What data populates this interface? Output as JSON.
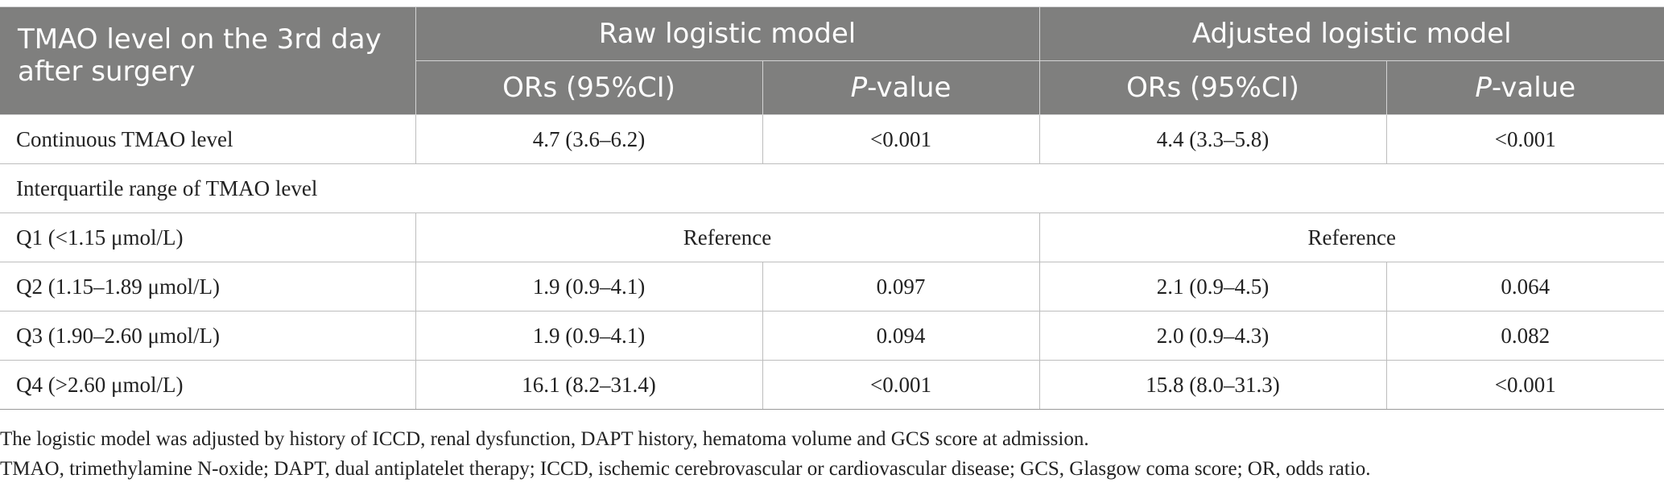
{
  "table": {
    "stub_header": "TMAO level on the 3rd day after surgery",
    "groups": [
      "Raw logistic model",
      "Adjusted logistic model"
    ],
    "or_header": "ORs (95%CI)",
    "p_header_italic": "P",
    "p_header_rest": "-value",
    "rows": [
      {
        "label": "Continuous TMAO level",
        "raw_or": "4.7 (3.6–6.2)",
        "raw_p": "<0.001",
        "adj_or": "4.4 (3.3–5.8)",
        "adj_p": "<0.001"
      },
      {
        "label": "Interquartile range of TMAO level"
      },
      {
        "label": "Q1 (<1.15 μmol/L)",
        "raw_ref": "Reference",
        "adj_ref": "Reference"
      },
      {
        "label": "Q2 (1.15–1.89 μmol/L)",
        "raw_or": "1.9 (0.9–4.1)",
        "raw_p": "0.097",
        "adj_or": "2.1 (0.9–4.5)",
        "adj_p": "0.064"
      },
      {
        "label": "Q3 (1.90–2.60 μmol/L)",
        "raw_or": "1.9 (0.9–4.1)",
        "raw_p": "0.094",
        "adj_or": "2.0 (0.9–4.3)",
        "adj_p": "0.082"
      },
      {
        "label": "Q4 (>2.60 μmol/L)",
        "raw_or": "16.1 (8.2–31.4)",
        "raw_p": "<0.001",
        "adj_or": "15.8 (8.0–31.3)",
        "adj_p": "<0.001"
      }
    ]
  },
  "footnotes": [
    "The logistic model was adjusted by history of ICCD, renal dysfunction, DAPT history, hematoma volume and GCS score at admission.",
    "TMAO, trimethylamine N-oxide; DAPT, dual antiplatelet therapy; ICCD, ischemic cerebrovascular or cardiovascular disease; GCS, Glasgow coma score; OR, odds ratio."
  ],
  "colors": {
    "header_bg": "#7f7f7e",
    "header_text": "#ffffff",
    "body_text": "#222222",
    "grid_line": "#bdbdbd"
  }
}
